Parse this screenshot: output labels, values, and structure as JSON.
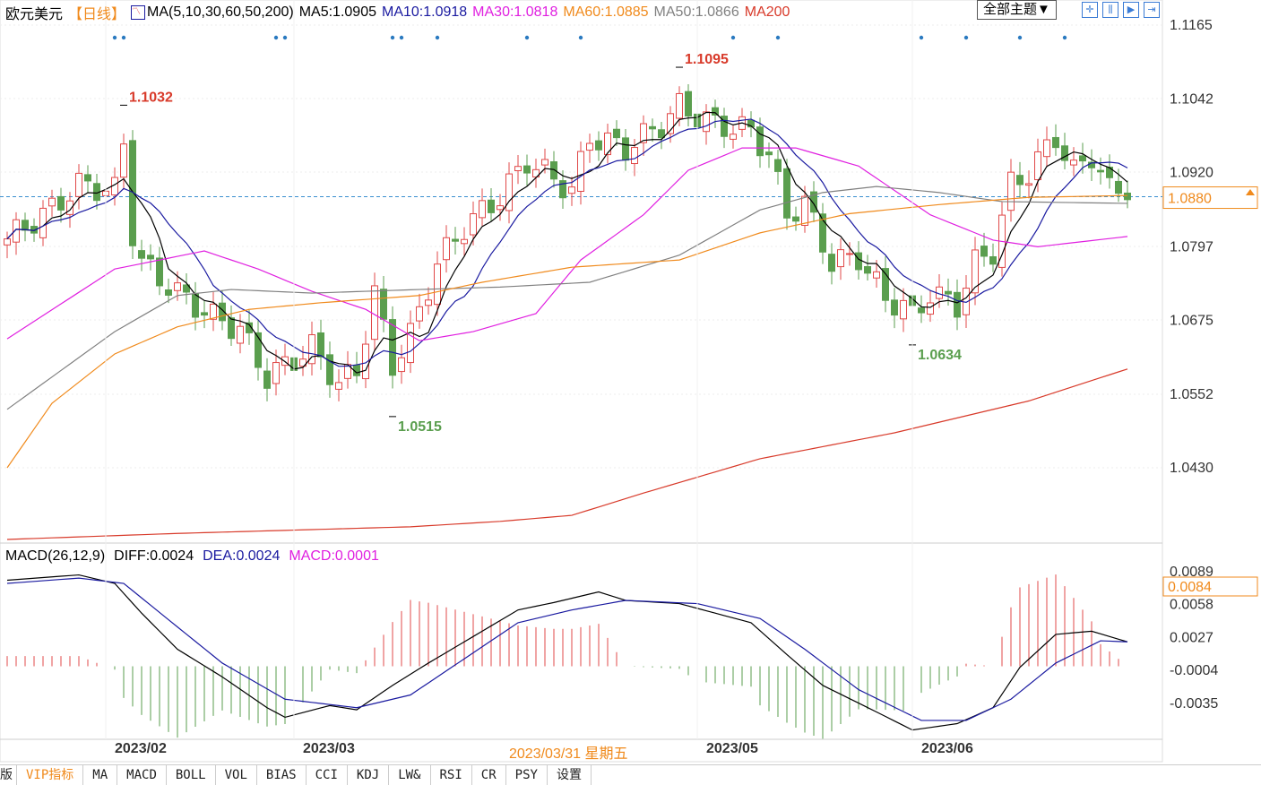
{
  "header": {
    "symbol": "欧元美元",
    "period": "【日线】",
    "ma_label": "MA(5,10,30,60,50,200)",
    "ma5": "MA5:1.0905",
    "ma10": "MA10:1.0918",
    "ma30": "MA30:1.0818",
    "ma60": "MA60:1.0885",
    "ma50": "MA50:1.0866",
    "ma200": "MA200",
    "theme_button": "全部主题▼"
  },
  "macd_header": {
    "label": "MACD(26,12,9)",
    "diff": "DIFF:0.0024",
    "dea": "DEA:0.0024",
    "macd": "MACD:0.0001"
  },
  "tabs": [
    "版",
    "VIP指标",
    "MA",
    "MACD",
    "BOLL",
    "VOL",
    "BIAS",
    "CCI",
    "KDJ",
    "LW&",
    "RSI",
    "CR",
    "PSY",
    "设置"
  ],
  "x_labels": [
    {
      "day": 15,
      "text": "2023/02"
    },
    {
      "day": 36,
      "text": "2023/03"
    },
    {
      "day": 81,
      "text": "2023/05"
    },
    {
      "day": 105,
      "text": "2023/06"
    }
  ],
  "cursor_date": {
    "day": 58,
    "text": "2023/03/31 星期五"
  },
  "colors": {
    "up": "#e04848",
    "down": "#5a9e4e",
    "ma5": "#000000",
    "ma10": "#1a1aa0",
    "ma30": "#e020e0",
    "ma60": "#f08a1c",
    "ma50": "#808080",
    "ma200": "#d83a2a",
    "dash": "#3a8fd0"
  },
  "chart_data": [
    {
      "type": "candlestick",
      "title": "欧元美元 日线",
      "ylim": [
        1.033,
        1.1165
      ],
      "y_ticks": [
        "1.1165",
        "1.1042",
        "1.0920",
        "1.0797",
        "1.0675",
        "1.0552",
        "1.0430"
      ],
      "current_price": "1.0880",
      "close_keypoints": [
        [
          0,
          1.081
        ],
        [
          5,
          1.086
        ],
        [
          8,
          1.09
        ],
        [
          12,
          1.089
        ],
        [
          13,
          1.097
        ],
        [
          14,
          1.082
        ],
        [
          15,
          1.077
        ],
        [
          19,
          1.072
        ],
        [
          23,
          1.068
        ],
        [
          26,
          1.066
        ],
        [
          29,
          1.058
        ],
        [
          31,
          1.06
        ],
        [
          34,
          1.063
        ],
        [
          37,
          1.057
        ],
        [
          39,
          1.059
        ],
        [
          41,
          1.072
        ],
        [
          43,
          1.06
        ],
        [
          45,
          1.065
        ],
        [
          48,
          1.077
        ],
        [
          51,
          1.083
        ],
        [
          55,
          1.088
        ],
        [
          58,
          1.094
        ],
        [
          61,
          1.091
        ],
        [
          63,
          1.089
        ],
        [
          65,
          1.098
        ],
        [
          69,
          1.096
        ],
        [
          73,
          1.1
        ],
        [
          75,
          1.103
        ],
        [
          79,
          1.1
        ],
        [
          83,
          1.099
        ],
        [
          85,
          1.095
        ],
        [
          87,
          1.085
        ],
        [
          89,
          1.087
        ],
        [
          92,
          1.077
        ],
        [
          95,
          1.078
        ],
        [
          98,
          1.071
        ],
        [
          100,
          1.07
        ],
        [
          101,
          1.068
        ],
        [
          103,
          1.072
        ],
        [
          106,
          1.07
        ],
        [
          108,
          1.077
        ],
        [
          110,
          1.079
        ],
        [
          112,
          1.09
        ],
        [
          114,
          1.092
        ],
        [
          117,
          1.098
        ],
        [
          119,
          1.092
        ],
        [
          121,
          1.095
        ],
        [
          123,
          1.089
        ],
        [
          125,
          1.0895
        ]
      ],
      "annotations": [
        {
          "day": 13,
          "value": "1.1032",
          "kind": "high"
        },
        {
          "day": 75,
          "value": "1.1095",
          "kind": "high"
        },
        {
          "day": 43,
          "value": "1.0515",
          "kind": "low"
        },
        {
          "day": 101,
          "value": "1.0634",
          "kind": "low"
        }
      ],
      "ma_lines": {
        "ma30": [
          [
            0,
            1.0644
          ],
          [
            12,
            1.076
          ],
          [
            22,
            1.079
          ],
          [
            28,
            1.076
          ],
          [
            34,
            1.0723
          ],
          [
            40,
            1.0693
          ],
          [
            46,
            1.0641
          ],
          [
            52,
            1.0656
          ],
          [
            59,
            1.0686
          ],
          [
            64,
            1.0775
          ],
          [
            71,
            1.085
          ],
          [
            76,
            1.0924
          ],
          [
            82,
            1.0961
          ],
          [
            88,
            1.0961
          ],
          [
            95,
            1.0931
          ],
          [
            103,
            1.085
          ],
          [
            110,
            1.0808
          ],
          [
            115,
            1.0797
          ],
          [
            125,
            1.0814
          ]
        ],
        "ma50": [
          [
            0,
            1.0527
          ],
          [
            12,
            1.0656
          ],
          [
            19,
            1.0716
          ],
          [
            25,
            1.0726
          ],
          [
            34,
            1.072
          ],
          [
            46,
            1.0726
          ],
          [
            55,
            1.073
          ],
          [
            65,
            1.0738
          ],
          [
            75,
            1.0783
          ],
          [
            84,
            1.0858
          ],
          [
            91,
            1.0887
          ],
          [
            97,
            1.0897
          ],
          [
            104,
            1.0887
          ],
          [
            111,
            1.0872
          ],
          [
            125,
            1.0869
          ]
        ],
        "ma60": [
          [
            0,
            1.043
          ],
          [
            5,
            1.0537
          ],
          [
            12,
            1.0619
          ],
          [
            19,
            1.0664
          ],
          [
            27,
            1.0693
          ],
          [
            35,
            1.0704
          ],
          [
            46,
            1.0716
          ],
          [
            53,
            1.0738
          ],
          [
            63,
            1.0763
          ],
          [
            75,
            1.0775
          ],
          [
            84,
            1.082
          ],
          [
            94,
            1.0852
          ],
          [
            104,
            1.0867
          ],
          [
            114,
            1.0879
          ],
          [
            125,
            1.0882
          ]
        ],
        "ma200": [
          [
            0,
            1.0311
          ],
          [
            19,
            1.0321
          ],
          [
            45,
            1.0332
          ],
          [
            55,
            1.0341
          ],
          [
            63,
            1.0351
          ],
          [
            71,
            1.0388
          ],
          [
            84,
            1.0445
          ],
          [
            99,
            1.0488
          ],
          [
            114,
            1.0541
          ],
          [
            125,
            1.0594
          ]
        ]
      },
      "signal_dots_days": [
        12,
        13,
        30,
        31,
        43,
        44,
        48,
        58,
        64,
        81,
        86,
        102,
        107,
        113,
        118
      ]
    },
    {
      "type": "macd",
      "ylim": [
        -0.007,
        0.01
      ],
      "y_ticks": [
        "0.0089",
        "0.0058",
        "0.0027",
        "-0.0004",
        "-0.0035"
      ],
      "current_value": "0.0084",
      "diff": [
        [
          0,
          0.0081
        ],
        [
          8,
          0.0086
        ],
        [
          12,
          0.0078
        ],
        [
          15,
          0.005
        ],
        [
          19,
          0.0016
        ],
        [
          24,
          -0.001
        ],
        [
          29,
          -0.0039
        ],
        [
          31,
          -0.0048
        ],
        [
          36,
          -0.0037
        ],
        [
          39,
          -0.0041
        ],
        [
          43,
          -0.0018
        ],
        [
          47,
          0.0003
        ],
        [
          52,
          0.0028
        ],
        [
          57,
          0.0053
        ],
        [
          61,
          0.006
        ],
        [
          66,
          0.007
        ],
        [
          69,
          0.0062
        ],
        [
          75,
          0.0059
        ],
        [
          79,
          0.005
        ],
        [
          83,
          0.0041
        ],
        [
          87,
          0.0011
        ],
        [
          91,
          -0.0018
        ],
        [
          97,
          -0.0043
        ],
        [
          101,
          -0.006
        ],
        [
          106,
          -0.0054
        ],
        [
          110,
          -0.0039
        ],
        [
          113,
          -0.0001
        ],
        [
          117,
          0.003
        ],
        [
          121,
          0.0033
        ],
        [
          125,
          0.0023
        ]
      ],
      "dea": [
        [
          0,
          0.0078
        ],
        [
          8,
          0.0083
        ],
        [
          13,
          0.0078
        ],
        [
          19,
          0.0037
        ],
        [
          24,
          0.0003
        ],
        [
          31,
          -0.0031
        ],
        [
          39,
          -0.0039
        ],
        [
          45,
          -0.0027
        ],
        [
          51,
          0.0007
        ],
        [
          57,
          0.0041
        ],
        [
          63,
          0.0053
        ],
        [
          69,
          0.0062
        ],
        [
          77,
          0.0059
        ],
        [
          84,
          0.0045
        ],
        [
          89,
          0.0016
        ],
        [
          95,
          -0.0022
        ],
        [
          102,
          -0.0051
        ],
        [
          107,
          -0.0051
        ],
        [
          112,
          -0.0031
        ],
        [
          117,
          0.0003
        ],
        [
          122,
          0.0024
        ],
        [
          125,
          0.0023
        ]
      ]
    }
  ]
}
